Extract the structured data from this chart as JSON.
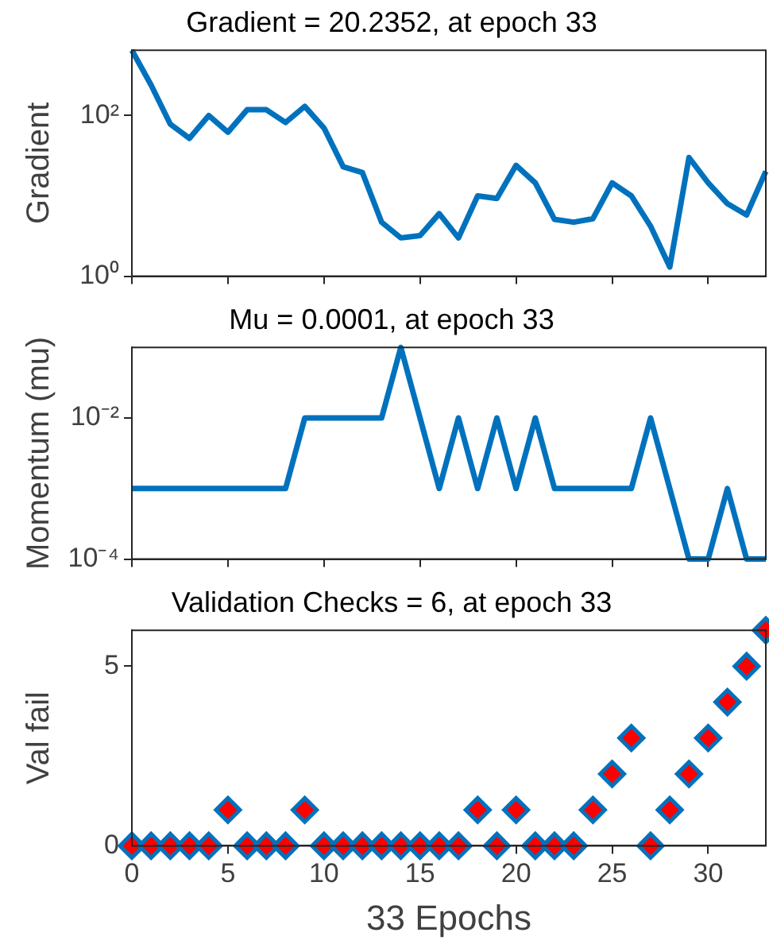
{
  "chart_data": [
    {
      "type": "line",
      "title": "Gradient = 20.2352, at epoch 33",
      "ylabel": "Gradient",
      "log": "y",
      "grid": false,
      "legend": false,
      "marker": "none",
      "tick_labels": "y",
      "x": [
        0,
        1,
        2,
        3,
        4,
        5,
        6,
        7,
        8,
        9,
        10,
        11,
        12,
        13,
        14,
        15,
        16,
        17,
        18,
        19,
        20,
        21,
        22,
        23,
        24,
        25,
        26,
        27,
        28,
        29,
        30,
        31,
        32,
        33
      ],
      "xlim": [
        0,
        33
      ],
      "xticks": [
        0,
        5,
        10,
        15,
        20,
        25,
        30
      ],
      "ylim": [
        1,
        650
      ],
      "yticks": [
        {
          "value": 1,
          "label": "10⁰"
        },
        {
          "value": 100,
          "label": "10²"
        }
      ],
      "series": [
        {
          "color": "#0072bd",
          "values": [
            650,
            240,
            78,
            52,
            100,
            62,
            118,
            118,
            82,
            130,
            70,
            23,
            19.5,
            4.7,
            3.0,
            3.2,
            6.0,
            3.0,
            10,
            9.3,
            24,
            14.5,
            5.1,
            4.7,
            5.2,
            14.5,
            10,
            4.2,
            1.3,
            30,
            14.5,
            8,
            5.8,
            20.2352
          ]
        }
      ]
    },
    {
      "type": "line",
      "title": "Mu = 0.0001, at epoch 33",
      "ylabel": "Momentum (mu)",
      "log": "y",
      "grid": false,
      "legend": false,
      "marker": "none",
      "tick_labels": "y",
      "x": [
        0,
        1,
        2,
        3,
        4,
        5,
        6,
        7,
        8,
        9,
        10,
        11,
        12,
        13,
        14,
        15,
        16,
        17,
        18,
        19,
        20,
        21,
        22,
        23,
        24,
        25,
        26,
        27,
        28,
        29,
        30,
        31,
        32,
        33
      ],
      "xlim": [
        0,
        33
      ],
      "xticks": [
        0,
        5,
        10,
        15,
        20,
        25,
        30
      ],
      "ylim": [
        0.0001,
        0.1
      ],
      "yticks": [
        {
          "value": 0.0001,
          "label": "10⁻⁴"
        },
        {
          "value": 0.01,
          "label": "10⁻²"
        }
      ],
      "series": [
        {
          "color": "#0072bd",
          "values": [
            0.001,
            0.001,
            0.001,
            0.001,
            0.001,
            0.001,
            0.001,
            0.001,
            0.001,
            0.01,
            0.01,
            0.01,
            0.01,
            0.01,
            0.1,
            0.01,
            0.001,
            0.01,
            0.001,
            0.01,
            0.001,
            0.01,
            0.001,
            0.001,
            0.001,
            0.001,
            0.001,
            0.01,
            0.001,
            0.0001,
            0.0001,
            0.001,
            0.0001,
            0.0001
          ]
        }
      ]
    },
    {
      "type": "scatter",
      "title": "Validation Checks = 6, at epoch 33",
      "xlabel": "33 Epochs",
      "ylabel": "Val fail",
      "grid": false,
      "legend": false,
      "marker": "diamond",
      "x": [
        0,
        1,
        2,
        3,
        4,
        5,
        6,
        7,
        8,
        9,
        10,
        11,
        12,
        13,
        14,
        15,
        16,
        17,
        18,
        19,
        20,
        21,
        22,
        23,
        24,
        25,
        26,
        27,
        28,
        29,
        30,
        31,
        32,
        33
      ],
      "xlim": [
        0,
        33
      ],
      "xticks": [
        0,
        5,
        10,
        15,
        20,
        25,
        30
      ],
      "ylim": [
        0,
        6
      ],
      "yticks": [
        0,
        5
      ],
      "series": [
        {
          "color": "#ff0000",
          "values": [
            0,
            0,
            0,
            0,
            0,
            1,
            0,
            0,
            0,
            1,
            0,
            0,
            0,
            0,
            0,
            0,
            0,
            0,
            1,
            0,
            1,
            0,
            0,
            0,
            1,
            2,
            3,
            0,
            1,
            2,
            3,
            4,
            5,
            6
          ]
        }
      ]
    }
  ]
}
